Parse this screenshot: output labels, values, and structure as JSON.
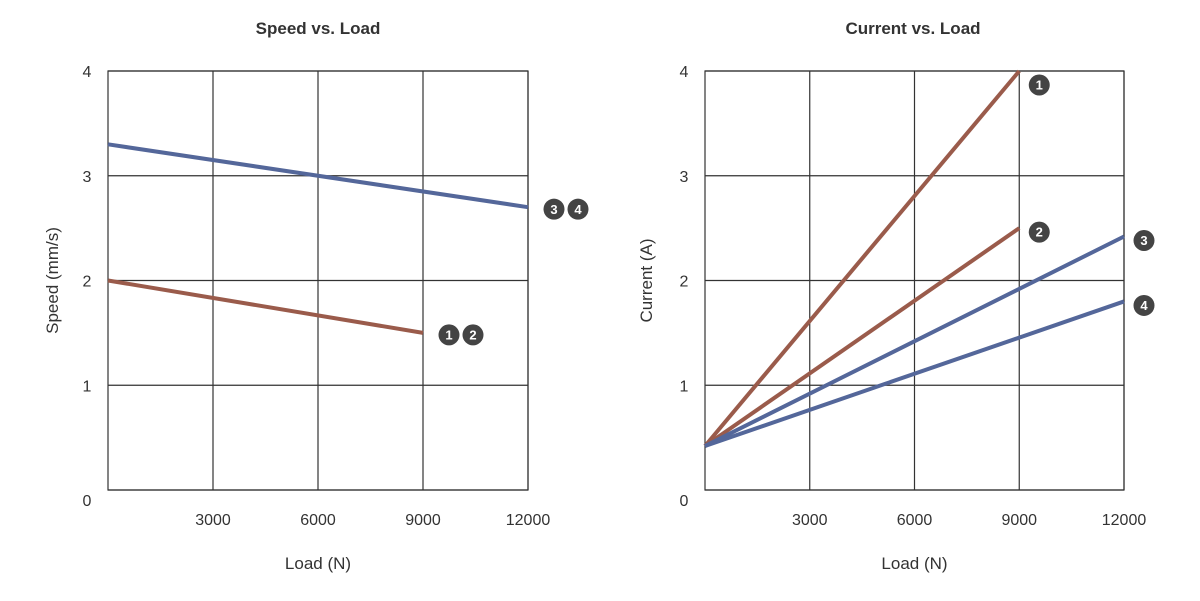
{
  "colors": {
    "red_series": "#9a5b4b",
    "blue_series": "#54679a",
    "grid": "#333333",
    "badge": "#444444"
  },
  "chart_data": [
    {
      "type": "line",
      "title": "Speed vs. Load",
      "xlabel": "Load (N)",
      "ylabel": "Speed (mm/s)",
      "xlim": [
        0,
        12000
      ],
      "ylim": [
        0,
        4
      ],
      "x_ticks": [
        "3000",
        "6000",
        "9000",
        "12000"
      ],
      "x_tick_values": [
        3000,
        6000,
        9000,
        12000
      ],
      "y_ticks": [
        "0",
        "1",
        "2",
        "3",
        "4"
      ],
      "y_tick_values": [
        0,
        1,
        2,
        3,
        4
      ],
      "grid": true,
      "series": [
        {
          "badges": [
            "3",
            "4"
          ],
          "color": "#54679a",
          "x": [
            0,
            12000
          ],
          "y": [
            3.3,
            2.7
          ]
        },
        {
          "badges": [
            "1",
            "2"
          ],
          "color": "#9a5b4b",
          "x": [
            0,
            9000
          ],
          "y": [
            2.0,
            1.5
          ]
        }
      ]
    },
    {
      "type": "line",
      "title": "Current vs. Load",
      "xlabel": "Load (N)",
      "ylabel": "Current (A)",
      "xlim": [
        0,
        12000
      ],
      "ylim": [
        0,
        4
      ],
      "x_ticks": [
        "3000",
        "6000",
        "9000",
        "12000"
      ],
      "x_tick_values": [
        3000,
        6000,
        9000,
        12000
      ],
      "y_ticks": [
        "0",
        "1",
        "2",
        "3",
        "4"
      ],
      "y_tick_values": [
        0,
        1,
        2,
        3,
        4
      ],
      "grid": true,
      "series": [
        {
          "badges": [
            "1"
          ],
          "color": "#9a5b4b",
          "x": [
            0,
            9000
          ],
          "y": [
            0.42,
            4.0
          ]
        },
        {
          "badges": [
            "2"
          ],
          "color": "#9a5b4b",
          "x": [
            0,
            9000
          ],
          "y": [
            0.42,
            2.5
          ]
        },
        {
          "badges": [
            "3"
          ],
          "color": "#54679a",
          "x": [
            0,
            12000
          ],
          "y": [
            0.42,
            2.42
          ]
        },
        {
          "badges": [
            "4"
          ],
          "color": "#54679a",
          "x": [
            0,
            12000
          ],
          "y": [
            0.42,
            1.8
          ]
        }
      ]
    }
  ]
}
